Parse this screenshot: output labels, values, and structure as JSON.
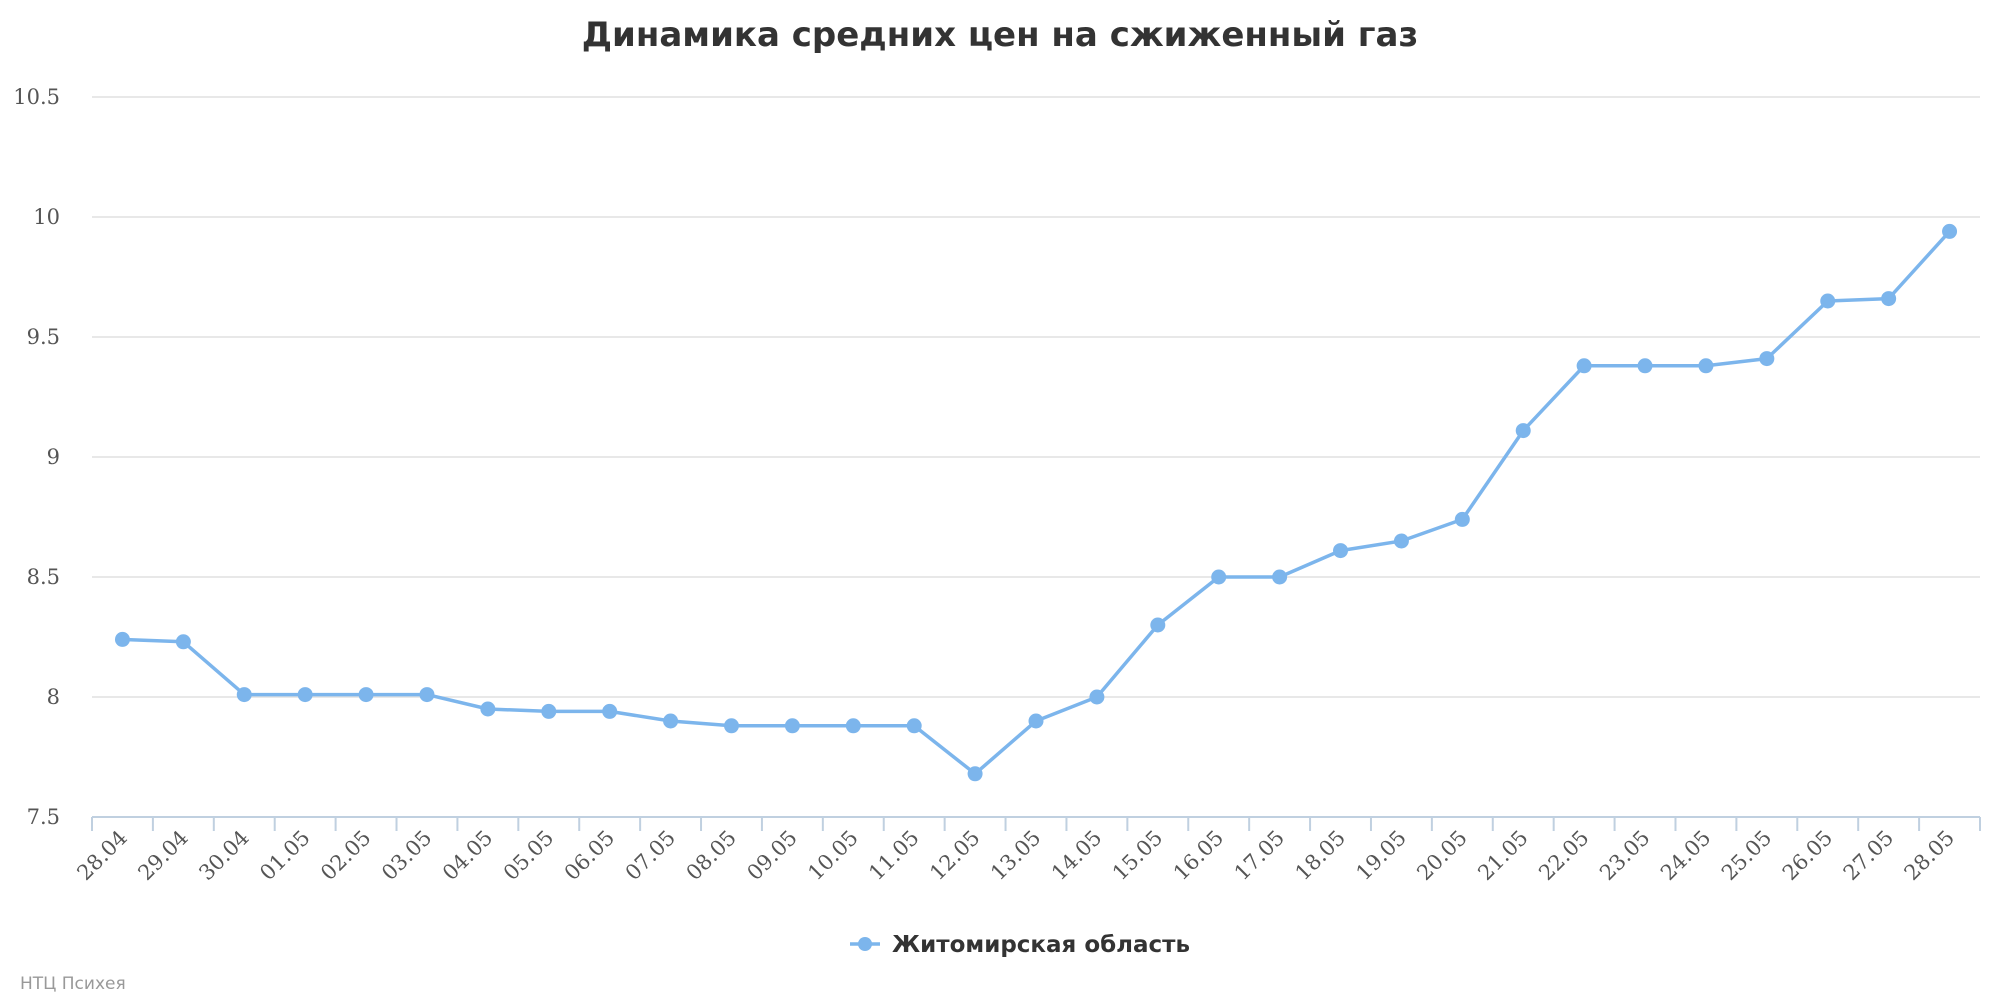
{
  "chart_data": {
    "type": "line",
    "title": "Динамика средних цен на сжиженный газ",
    "xlabel": "",
    "ylabel": "",
    "categories": [
      "28.04",
      "29.04",
      "30.04",
      "01.05",
      "02.05",
      "03.05",
      "04.05",
      "05.05",
      "06.05",
      "07.05",
      "08.05",
      "09.05",
      "10.05",
      "11.05",
      "12.05",
      "13.05",
      "14.05",
      "15.05",
      "16.05",
      "17.05",
      "18.05",
      "19.05",
      "20.05",
      "21.05",
      "22.05",
      "23.05",
      "24.05",
      "25.05",
      "26.05",
      "27.05",
      "28.05"
    ],
    "series": [
      {
        "name": "Житомирская область",
        "color": "#7cb5ec",
        "values": [
          8.24,
          8.23,
          8.01,
          8.01,
          8.01,
          8.01,
          7.95,
          7.94,
          7.94,
          7.9,
          7.88,
          7.88,
          7.88,
          7.88,
          7.68,
          7.9,
          8.0,
          8.3,
          8.5,
          8.5,
          8.61,
          8.65,
          8.74,
          9.11,
          9.38,
          9.38,
          9.38,
          9.41,
          9.65,
          9.66,
          9.94
        ]
      }
    ],
    "ylim": [
      7.5,
      10.5
    ],
    "yticks": [
      "7.5",
      "8",
      "8.5",
      "9",
      "9.5",
      "10",
      "10.5"
    ],
    "grid": true,
    "legend_position": "bottom-center"
  },
  "credits": "НТЦ Психея"
}
